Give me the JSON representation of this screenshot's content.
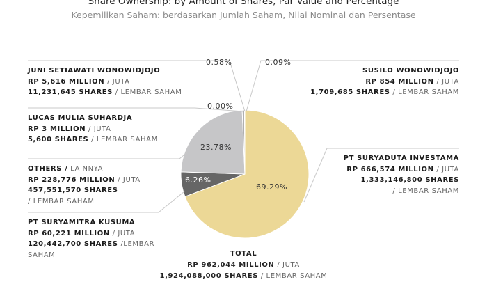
{
  "title": "Share Ownership: by Amount of Shares, Par Value and Percentage",
  "subtitle": "Kepemilikan Saham: berdasarkan Jumlah Saham, Nilai Nominal dan Persentase",
  "chart_data": {
    "type": "pie",
    "slices": [
      {
        "name": "PT Suryaduta Investama",
        "percent": 69.29,
        "color": "#ecd896",
        "label": "69.29%"
      },
      {
        "name": "PT Suryamitra Kusuma",
        "percent": 6.26,
        "color": "#666666",
        "label": "6.26%"
      },
      {
        "name": "Others",
        "percent": 23.78,
        "color": "#c6c6c8",
        "label": "23.78%"
      },
      {
        "name": "Lucas Mulia Suhardja",
        "percent": 0.0,
        "color": "#c6c6c8",
        "label": "0.00%"
      },
      {
        "name": "Juni Setiawati Wonowidjojo",
        "percent": 0.58,
        "color": "#b0b0b0",
        "label": "0.58%"
      },
      {
        "name": "Susilo Wonowidjojo",
        "percent": 0.09,
        "color": "#b0b0b0",
        "label": "0.09%"
      }
    ]
  },
  "labels": {
    "juni": {
      "name": "JUNI SETIAWATI WONOWIDJOJO",
      "value": "RP 5,616 MILLION",
      "value_lt": "/ JUTA",
      "shares": "11,231,645 SHARES",
      "shares_lt": "/ LEMBAR SAHAM"
    },
    "lucas": {
      "name": "LUCAS MULIA SUHARDJA",
      "value": "RP 3 MILLION",
      "value_lt": "/ JUTA",
      "shares": "5,600 SHARES",
      "shares_lt": "/ LEMBAR SAHAM"
    },
    "others": {
      "name": "OTHERS /",
      "name_lt": "LAINNYA",
      "value": "RP 228,776 MILLION",
      "value_lt": "/ JUTA",
      "shares": "457,551,570 SHARES",
      "shares_lt": "/ LEMBAR SAHAM"
    },
    "suryamitra": {
      "name": "PT SURYAMITRA KUSUMA",
      "value": "RP 60,221 MILLION",
      "value_lt": "/ JUTA",
      "shares": "120,442,700 SHARES",
      "shares_lt": "/LEMBAR",
      "shares_lt2": "SAHAM"
    },
    "susilo": {
      "name": "SUSILO WONOWIDJOJO",
      "value": "RP 854 MILLION",
      "value_lt": "/ JUTA",
      "shares": "1,709,685 SHARES",
      "shares_lt": "/ LEMBAR SAHAM"
    },
    "suryaduta": {
      "name": "PT SURYADUTA INVESTAMA",
      "value": "RP 666,574 MILLION",
      "value_lt": "/ JUTA",
      "shares": "1,333,146,800 SHARES",
      "shares_lt": "/ LEMBAR SAHAM"
    }
  },
  "total": {
    "heading": "TOTAL",
    "value": "RP 962,044 MILLION",
    "value_lt": "/ JUTA",
    "shares": "1,924,088,000 SHARES",
    "shares_lt": "/ LEMBAR SAHAM"
  }
}
